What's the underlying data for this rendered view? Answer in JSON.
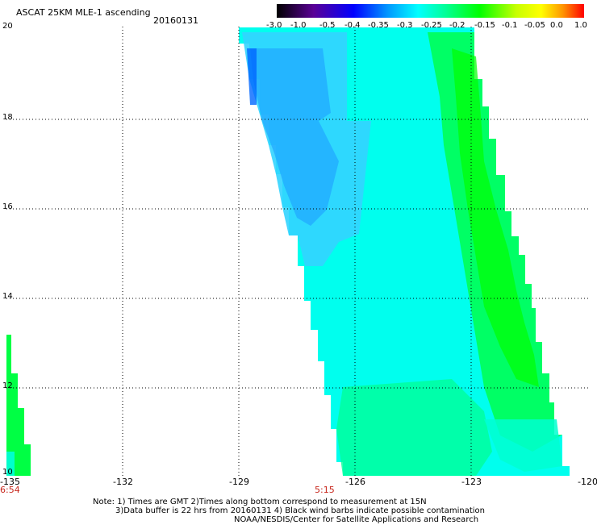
{
  "header": {
    "title": "ASCAT 25KM MLE-1 ascending",
    "date": "20160131"
  },
  "colorbar": {
    "tick_labels": [
      "-3.0",
      "-1.0",
      "-0.5",
      "-0.4",
      "-0.35",
      "-0.3",
      "-0.25",
      "-0.2",
      "-0.15",
      "-0.1",
      "-0.05",
      "0.0",
      "1.0"
    ]
  },
  "axes": {
    "lon_labels": [
      "-135",
      "-132",
      "-129",
      "-126",
      "-123",
      "-120"
    ],
    "lat_labels": [
      "20",
      "18",
      "16",
      "14",
      "12",
      "10"
    ]
  },
  "times": [
    "6:54",
    "5:15"
  ],
  "notes": [
    "Note: 1) Times are GMT 2)Times along bottom correspond to measurement at 15N",
    "3)Data buffer is 22 hrs from 20160131 4) Black wind barbs indicate possible contamination",
    "NOAA/NESDIS/Center for Satellite Applications and Research"
  ],
  "colors": {
    "swath_cyan": "#00ffff",
    "swath_blue": "#33b4ff",
    "swath_green": "#00ff66",
    "swath_bright_green": "#00ff00",
    "time_label": "#c8281e"
  }
}
